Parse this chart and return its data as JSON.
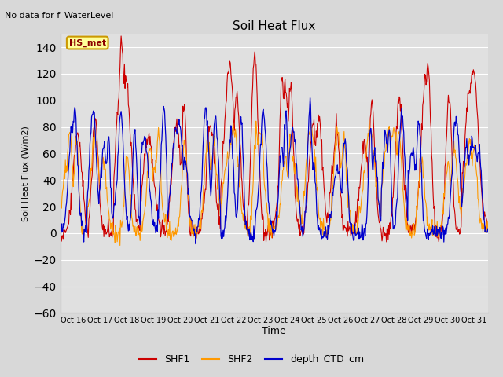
{
  "title": "Soil Heat Flux",
  "top_left_text": "No data for f_WaterLevel",
  "ylabel": "Soil Heat Flux (W/m2)",
  "xlabel": "Time",
  "ylim": [
    -60,
    150
  ],
  "yticks": [
    -60,
    -40,
    -20,
    0,
    20,
    40,
    60,
    80,
    100,
    120,
    140
  ],
  "legend_label": "HS_met",
  "shf1_color": "#cc0000",
  "shf2_color": "#ff9900",
  "ctd_color": "#0000cc",
  "background_color": "#e0e0e0",
  "fig_background": "#d8d8d8",
  "xtick_labels": [
    "Oct 16",
    "Oct 17",
    "Oct 18",
    "Oct 19",
    "Oct 20",
    "Oct 21",
    "Oct 22",
    "Oct 23",
    "Oct 24",
    "Oct 25",
    "Oct 26",
    "Oct 27",
    "Oct 28",
    "Oct 29",
    "Oct 30",
    "Oct 31"
  ],
  "n_days": 16,
  "pts_per_day": 48
}
